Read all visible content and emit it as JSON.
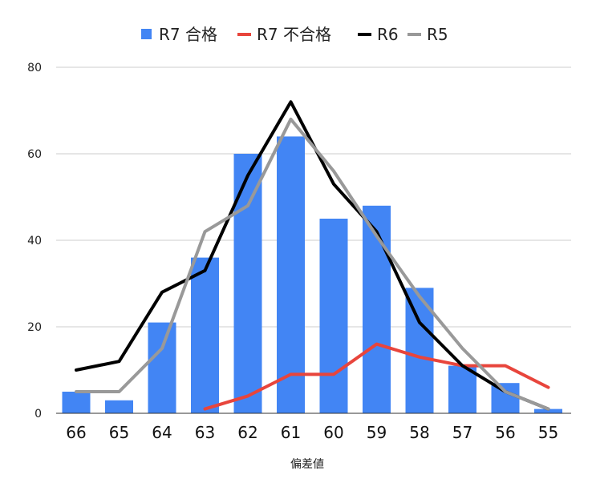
{
  "chart_data": {
    "type": "bar",
    "xlabel": "偏差値",
    "ylabel": "",
    "ylim": [
      0,
      80
    ],
    "yticks": [
      0,
      20,
      40,
      60,
      80
    ],
    "grid": true,
    "legend_position": "top",
    "categories": [
      "66",
      "65",
      "64",
      "63",
      "62",
      "61",
      "60",
      "59",
      "58",
      "57",
      "56",
      "55"
    ],
    "series": [
      {
        "name": "R7 合格",
        "kind": "bar",
        "color": "#4285f4",
        "values": [
          5,
          3,
          21,
          36,
          60,
          64,
          45,
          48,
          29,
          11,
          7,
          1
        ]
      },
      {
        "name": "R7 不合格",
        "kind": "line",
        "color": "#e8453c",
        "values": [
          null,
          null,
          null,
          1,
          4,
          9,
          9,
          16,
          13,
          11,
          11,
          6
        ]
      },
      {
        "name": "R6",
        "kind": "line",
        "color": "#000000",
        "values": [
          10,
          12,
          28,
          33,
          55,
          72,
          53,
          42,
          21,
          11,
          5,
          1
        ]
      },
      {
        "name": "R5",
        "kind": "line",
        "color": "#999999",
        "values": [
          5,
          5,
          15,
          42,
          48,
          68,
          56,
          41,
          27,
          15,
          5,
          1
        ]
      }
    ]
  }
}
